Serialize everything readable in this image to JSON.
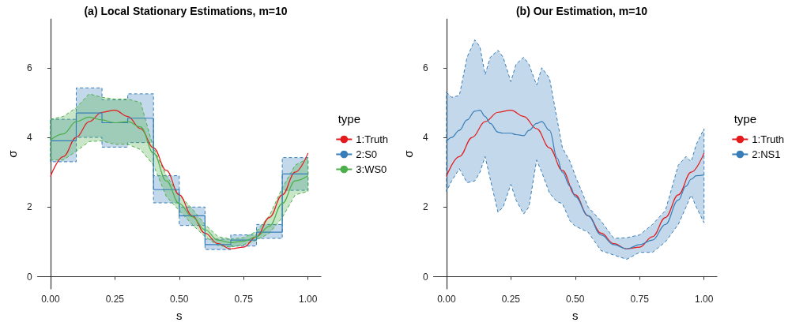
{
  "chart_data": [
    {
      "type": "line",
      "title": "(a) Local Stationary Estimations, m=10",
      "xlabel": "s",
      "ylabel": "σ",
      "legend_title": "type",
      "legend": "right",
      "xlim": [
        -0.05,
        1.05
      ],
      "ylim": [
        -0.35,
        7.4
      ],
      "xticks": [
        {
          "value": 0,
          "label": "0.00"
        },
        {
          "value": 0.25,
          "label": "0.25"
        },
        {
          "value": 0.5,
          "label": "0.50"
        },
        {
          "value": 0.75,
          "label": "0.75"
        },
        {
          "value": 1,
          "label": "1.00"
        }
      ],
      "yticks": [
        0,
        2,
        4,
        6
      ],
      "series": [
        {
          "name": "1:Truth",
          "color": "#e41a1c",
          "x": [
            0,
            0.05,
            0.1,
            0.15,
            0.2,
            0.25,
            0.3,
            0.35,
            0.4,
            0.45,
            0.5,
            0.55,
            0.6,
            0.65,
            0.7,
            0.75,
            0.8,
            0.85,
            0.9,
            0.95,
            1.0
          ],
          "values": [
            2.88,
            3.45,
            4.0,
            4.45,
            4.72,
            4.78,
            4.6,
            4.25,
            3.7,
            3.05,
            2.35,
            1.75,
            1.25,
            0.95,
            0.8,
            0.85,
            1.15,
            1.7,
            2.35,
            3.0,
            3.55
          ]
        },
        {
          "name": "2:S0",
          "type": "step",
          "color": "#377eb8",
          "x": [
            0,
            0.1,
            0.2,
            0.3,
            0.4,
            0.5,
            0.6,
            0.7,
            0.8,
            0.9,
            1.0
          ],
          "values": [
            3.9,
            4.7,
            4.42,
            4.55,
            2.5,
            1.75,
            0.92,
            1.05,
            1.28,
            2.95,
            2.95
          ],
          "lower": [
            3.3,
            4.0,
            3.72,
            3.85,
            2.12,
            1.47,
            0.78,
            0.88,
            1.1,
            2.48,
            2.48
          ],
          "upper": [
            4.52,
            5.42,
            5.08,
            5.25,
            2.9,
            2.0,
            1.08,
            1.2,
            1.5,
            3.42,
            3.42
          ]
        },
        {
          "name": "3:WS0",
          "color": "#4daf4a",
          "x": [
            0,
            0.05,
            0.1,
            0.15,
            0.2,
            0.25,
            0.3,
            0.35,
            0.4,
            0.45,
            0.5,
            0.55,
            0.6,
            0.65,
            0.7,
            0.75,
            0.8,
            0.85,
            0.9,
            0.95,
            1.0
          ],
          "values": [
            3.92,
            4.1,
            4.45,
            4.58,
            4.5,
            4.42,
            4.45,
            4.3,
            3.55,
            2.75,
            2.1,
            1.72,
            1.35,
            1.05,
            0.98,
            1.02,
            1.15,
            1.45,
            2.1,
            2.75,
            2.9
          ],
          "lower": [
            3.35,
            3.35,
            3.6,
            3.88,
            3.9,
            3.8,
            3.8,
            3.65,
            3.2,
            2.3,
            1.9,
            1.5,
            1.15,
            0.9,
            0.85,
            0.92,
            1.05,
            1.25,
            1.7,
            2.35,
            2.45
          ],
          "upper": [
            4.52,
            4.6,
            4.85,
            5.25,
            5.15,
            5.1,
            5.1,
            5.0,
            3.7,
            2.9,
            2.35,
            1.95,
            1.5,
            1.15,
            1.08,
            1.12,
            1.3,
            1.75,
            2.55,
            3.2,
            3.4
          ]
        }
      ]
    },
    {
      "type": "line",
      "title": "(b) Our Estimation, m=10",
      "xlabel": "s",
      "ylabel": "σ",
      "legend_title": "type",
      "legend": "right",
      "xlim": [
        -0.05,
        1.05
      ],
      "ylim": [
        -0.35,
        7.4
      ],
      "xticks": [
        {
          "value": 0,
          "label": "0.00"
        },
        {
          "value": 0.25,
          "label": "0.25"
        },
        {
          "value": 0.5,
          "label": "0.50"
        },
        {
          "value": 0.75,
          "label": "0.75"
        },
        {
          "value": 1,
          "label": "1.00"
        }
      ],
      "yticks": [
        0,
        2,
        4,
        6
      ],
      "series": [
        {
          "name": "1:Truth",
          "color": "#e41a1c",
          "x": [
            0,
            0.05,
            0.1,
            0.15,
            0.2,
            0.25,
            0.3,
            0.35,
            0.4,
            0.45,
            0.5,
            0.55,
            0.6,
            0.65,
            0.7,
            0.75,
            0.8,
            0.85,
            0.9,
            0.95,
            1.0
          ],
          "values": [
            2.88,
            3.45,
            4.0,
            4.45,
            4.72,
            4.78,
            4.6,
            4.25,
            3.7,
            3.05,
            2.35,
            1.75,
            1.25,
            0.95,
            0.8,
            0.85,
            1.15,
            1.7,
            2.35,
            3.0,
            3.55
          ]
        },
        {
          "name": "2:NS1",
          "color": "#377eb8",
          "x": [
            0,
            0.02,
            0.05,
            0.08,
            0.11,
            0.13,
            0.15,
            0.17,
            0.2,
            0.22,
            0.25,
            0.27,
            0.3,
            0.32,
            0.35,
            0.37,
            0.4,
            0.43,
            0.45,
            0.48,
            0.5,
            0.55,
            0.6,
            0.65,
            0.7,
            0.75,
            0.8,
            0.85,
            0.9,
            0.93,
            0.95,
            0.97,
            1.0
          ],
          "values": [
            3.88,
            4.0,
            4.2,
            4.5,
            4.75,
            4.78,
            4.6,
            4.4,
            4.15,
            4.12,
            4.12,
            4.08,
            4.05,
            4.2,
            4.4,
            4.45,
            4.2,
            3.4,
            3.0,
            2.6,
            2.3,
            1.75,
            1.2,
            0.92,
            0.8,
            0.92,
            1.05,
            1.5,
            2.2,
            2.6,
            2.8,
            2.9,
            2.92
          ],
          "lower": [
            2.45,
            2.75,
            3.1,
            2.7,
            2.75,
            3.0,
            3.45,
            2.8,
            1.85,
            2.0,
            2.65,
            2.2,
            1.8,
            2.0,
            3.35,
            3.0,
            2.4,
            2.15,
            2.1,
            1.6,
            1.45,
            1.28,
            0.75,
            0.62,
            0.5,
            0.7,
            0.7,
            1.0,
            1.5,
            2.0,
            2.35,
            2.0,
            1.55
          ],
          "upper": [
            5.3,
            5.15,
            5.2,
            6.3,
            6.8,
            6.6,
            5.8,
            6.3,
            6.5,
            6.3,
            5.6,
            6.1,
            6.3,
            6.1,
            5.5,
            6.0,
            5.7,
            4.5,
            3.7,
            3.3,
            2.9,
            2.0,
            1.6,
            1.1,
            1.12,
            1.2,
            1.5,
            1.9,
            3.2,
            3.45,
            3.3,
            3.8,
            4.25
          ]
        }
      ]
    }
  ]
}
